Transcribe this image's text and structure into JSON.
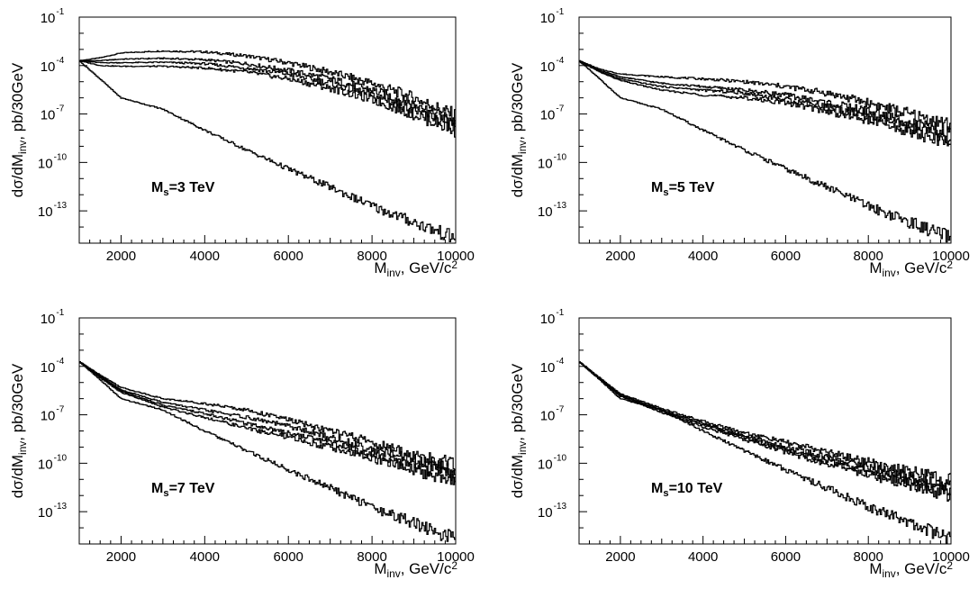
{
  "colors": {
    "line": "#000000",
    "background": "#ffffff"
  },
  "chart_data": [
    {
      "type": "line",
      "ylabel_parts": [
        "dσ/dM",
        "inv",
        ", pb/30GeV"
      ],
      "xlabel_parts": [
        "M",
        "inv",
        ", GeV/c",
        "2"
      ],
      "annotation_parts": [
        "M",
        "s",
        "=3 TeV"
      ],
      "xlim": [
        1000,
        10000
      ],
      "ylim": [
        1e-15,
        0.1
      ],
      "yscale": "log",
      "xticks": [
        "2000",
        "4000",
        "6000",
        "8000",
        "10000"
      ],
      "yticks": [
        {
          "base": "10",
          "exp": "-1"
        },
        {
          "base": "10",
          "exp": "-4"
        },
        {
          "base": "10",
          "exp": "-7"
        },
        {
          "base": "10",
          "exp": "-10"
        },
        {
          "base": "10",
          "exp": "-13"
        }
      ],
      "grid": false,
      "x": [
        1000,
        1500,
        2000,
        3000,
        4000,
        5000,
        6000,
        7000,
        8000,
        9000,
        10000
      ],
      "series": [
        {
          "values": [
            0.0002,
            0.0003,
            0.0006,
            0.0008,
            0.0007,
            0.0004,
            0.00015,
            4e-05,
            8e-06,
            1e-06,
            8e-08
          ]
        },
        {
          "values": [
            0.0002,
            0.0002,
            0.00025,
            0.00028,
            0.00023,
            0.00013,
            5e-05,
            1.5e-05,
            3e-06,
            4e-07,
            3e-08
          ]
        },
        {
          "values": [
            0.0002,
            0.00015,
            0.00015,
            0.00016,
            0.00013,
            7e-05,
            3e-05,
            8e-06,
            1.5e-06,
            2e-07,
            2e-08
          ]
        },
        {
          "values": [
            0.0002,
            0.0001,
            9e-05,
            9e-05,
            7e-05,
            4e-05,
            1.5e-05,
            4e-06,
            8e-07,
            1e-07,
            1e-08
          ]
        },
        {
          "values": [
            0.0002,
            1.5e-05,
            1e-06,
            2e-07,
            1e-08,
            6e-10,
            4e-11,
            3e-12,
            2e-13,
            2e-14,
            2e-15
          ]
        }
      ]
    },
    {
      "type": "line",
      "ylabel_parts": [
        "dσ/dM",
        "inv",
        ", pb/30GeV"
      ],
      "xlabel_parts": [
        "M",
        "inv",
        ", GeV/c",
        "2"
      ],
      "annotation_parts": [
        "M",
        "s",
        "=5 TeV"
      ],
      "xlim": [
        1000,
        10000
      ],
      "ylim": [
        1e-15,
        0.1
      ],
      "yscale": "log",
      "xticks": [
        "2000",
        "4000",
        "6000",
        "8000",
        "10000"
      ],
      "yticks": [
        {
          "base": "10",
          "exp": "-1"
        },
        {
          "base": "10",
          "exp": "-4"
        },
        {
          "base": "10",
          "exp": "-7"
        },
        {
          "base": "10",
          "exp": "-10"
        },
        {
          "base": "10",
          "exp": "-13"
        }
      ],
      "grid": false,
      "x": [
        1000,
        1500,
        2000,
        3000,
        4000,
        5000,
        6000,
        7000,
        8000,
        9000,
        10000
      ],
      "series": [
        {
          "values": [
            0.0002,
            6e-05,
            3e-05,
            2e-05,
            1.5e-05,
            1e-05,
            5e-06,
            2e-06,
            5e-07,
            1e-07,
            2e-08
          ]
        },
        {
          "values": [
            0.0002,
            5e-05,
            2e-05,
            8e-06,
            5e-06,
            3e-06,
            1.5e-06,
            5e-07,
            1.5e-07,
            3e-08,
            5e-09
          ]
        },
        {
          "values": [
            0.0002,
            4.5e-05,
            1.5e-05,
            5e-06,
            3e-06,
            2e-06,
            8e-07,
            3e-07,
            8e-08,
            1.5e-08,
            3e-09
          ]
        },
        {
          "values": [
            0.0002,
            4e-05,
            1.2e-05,
            3e-06,
            1.5e-06,
            1e-06,
            5e-07,
            1.5e-07,
            4e-08,
            8e-09,
            1.5e-09
          ]
        },
        {
          "values": [
            0.0002,
            1.5e-05,
            1e-06,
            2e-07,
            1e-08,
            6e-10,
            4e-11,
            3e-12,
            2e-13,
            2e-14,
            2e-15
          ]
        }
      ]
    },
    {
      "type": "line",
      "ylabel_parts": [
        "dσ/dM",
        "inv",
        ", pb/30GeV"
      ],
      "xlabel_parts": [
        "M",
        "inv",
        ", GeV/c",
        "2"
      ],
      "annotation_parts": [
        "M",
        "s",
        "=7 TeV"
      ],
      "xlim": [
        1000,
        10000
      ],
      "ylim": [
        1e-15,
        0.1
      ],
      "yscale": "log",
      "xticks": [
        "2000",
        "4000",
        "6000",
        "8000",
        "10000"
      ],
      "yticks": [
        {
          "base": "10",
          "exp": "-1"
        },
        {
          "base": "10",
          "exp": "-4"
        },
        {
          "base": "10",
          "exp": "-7"
        },
        {
          "base": "10",
          "exp": "-10"
        },
        {
          "base": "10",
          "exp": "-13"
        }
      ],
      "grid": false,
      "x": [
        1000,
        1500,
        2000,
        3000,
        4000,
        5000,
        6000,
        7000,
        8000,
        9000,
        10000
      ],
      "series": [
        {
          "values": [
            0.0002,
            3e-05,
            5e-06,
            1e-06,
            5e-07,
            2e-07,
            5e-08,
            1e-08,
            2e-09,
            3e-10,
            8e-11
          ]
        },
        {
          "values": [
            0.0002,
            2.5e-05,
            3.5e-06,
            6e-07,
            2e-07,
            7e-08,
            2e-08,
            4e-09,
            8e-10,
            1.5e-10,
            3e-11
          ]
        },
        {
          "values": [
            0.0002,
            2.2e-05,
            3e-06,
            4e-07,
            1.2e-07,
            3e-08,
            8e-09,
            2e-09,
            4e-10,
            8e-11,
            1.5e-11
          ]
        },
        {
          "values": [
            0.0002,
            2e-05,
            2.5e-06,
            3e-07,
            7e-08,
            1.5e-08,
            4e-09,
            1e-09,
            2e-10,
            4e-11,
            8e-12
          ]
        },
        {
          "values": [
            0.0002,
            1.5e-05,
            1e-06,
            2e-07,
            1e-08,
            6e-10,
            4e-11,
            3e-12,
            2e-13,
            2e-14,
            2e-15
          ]
        }
      ]
    },
    {
      "type": "line",
      "ylabel_parts": [
        "dσ/dM",
        "inv",
        ", pb/30GeV"
      ],
      "xlabel_parts": [
        "M",
        "inv",
        ", GeV/c",
        "2"
      ],
      "annotation_parts": [
        "M",
        "s",
        "=10 TeV"
      ],
      "xlim": [
        1000,
        10000
      ],
      "ylim": [
        1e-15,
        0.1
      ],
      "yscale": "log",
      "xticks": [
        "2000",
        "4000",
        "6000",
        "8000",
        "10000"
      ],
      "yticks": [
        {
          "base": "10",
          "exp": "-1"
        },
        {
          "base": "10",
          "exp": "-4"
        },
        {
          "base": "10",
          "exp": "-7"
        },
        {
          "base": "10",
          "exp": "-10"
        },
        {
          "base": "10",
          "exp": "-13"
        }
      ],
      "grid": false,
      "x": [
        1000,
        1500,
        2000,
        3000,
        4000,
        5000,
        6000,
        7000,
        8000,
        9000,
        10000
      ],
      "series": [
        {
          "values": [
            0.0002,
            2e-05,
            2e-06,
            2.5e-07,
            4e-08,
            8e-09,
            2e-09,
            5e-10,
            1.2e-10,
            3e-11,
            8e-12
          ]
        },
        {
          "values": [
            0.0002,
            1.8e-05,
            1.8e-06,
            2e-07,
            3e-08,
            5e-09,
            1e-09,
            2.5e-10,
            6e-11,
            1.5e-11,
            4e-12
          ]
        },
        {
          "values": [
            0.0002,
            1.7e-05,
            1.6e-06,
            1.7e-07,
            2.5e-08,
            4e-09,
            7e-10,
            1.5e-10,
            3.5e-11,
            8e-12,
            2e-12
          ]
        },
        {
          "values": [
            0.0002,
            1.6e-05,
            1.4e-06,
            1.4e-07,
            1.8e-08,
            3e-09,
            5e-10,
            1e-10,
            2e-11,
            5e-12,
            1e-12
          ]
        },
        {
          "values": [
            0.0002,
            1.5e-05,
            1e-06,
            2e-07,
            1e-08,
            6e-10,
            4e-11,
            3e-12,
            2e-13,
            2e-14,
            2e-15
          ]
        }
      ]
    }
  ]
}
